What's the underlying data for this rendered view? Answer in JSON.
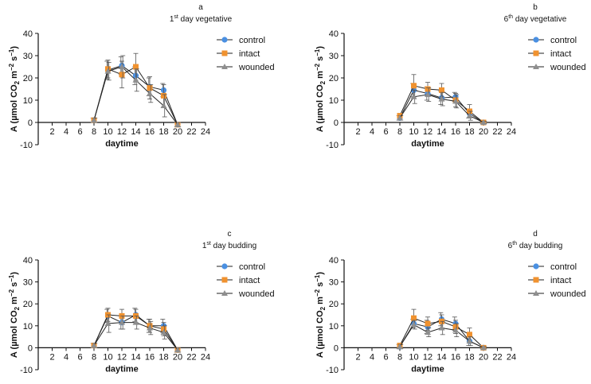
{
  "colors": {
    "control": "#4a90e2",
    "intact": "#f0922f",
    "wounded": "#8e8e8e",
    "axis": "#111111"
  },
  "chart_data": [
    {
      "type": "line",
      "panel_letter": "a",
      "title_ordinal": "1",
      "title_sup": "st",
      "title_rest": " day vegetative",
      "xlabel": "daytime",
      "ylabel": "A (µmol CO2 m−2 s−1)",
      "ylim": [
        -10,
        40
      ],
      "xlim": [
        0,
        24
      ],
      "xticks": [
        "2",
        "4",
        "6",
        "8",
        "10",
        "12",
        "14",
        "16",
        "18",
        "20",
        "22",
        "24"
      ],
      "yticks": [
        "-10",
        "0",
        "10",
        "20",
        "30",
        "40"
      ],
      "x": [
        8,
        10,
        12,
        14,
        16,
        18,
        20
      ],
      "series": [
        {
          "name": "control",
          "marker": "circle",
          "values": [
            1,
            23.5,
            25.5,
            21,
            16,
            14.5,
            -1
          ],
          "errors": [
            1,
            4,
            4,
            4,
            4,
            3,
            1
          ]
        },
        {
          "name": "intact",
          "marker": "square",
          "values": [
            1,
            24,
            21.5,
            25,
            15.5,
            12,
            -1
          ],
          "errors": [
            1,
            4,
            6,
            6,
            5,
            5,
            1
          ]
        },
        {
          "name": "wounded",
          "marker": "triangle",
          "values": [
            1,
            23,
            25,
            19,
            13,
            7.5,
            -1
          ],
          "errors": [
            1,
            4,
            5,
            5,
            4,
            5,
            1
          ]
        }
      ]
    },
    {
      "type": "line",
      "panel_letter": "b",
      "title_ordinal": "6",
      "title_sup": "th",
      "title_rest": " day vegetative",
      "xlabel": "daytime",
      "ylabel": "A (µmol CO2 m−2 s−1)",
      "ylim": [
        -10,
        40
      ],
      "xlim": [
        0,
        24
      ],
      "xticks": [
        "2",
        "4",
        "6",
        "8",
        "10",
        "12",
        "14",
        "16",
        "18",
        "20",
        "22",
        "24"
      ],
      "yticks": [
        "-10",
        "0",
        "10",
        "20",
        "30",
        "40"
      ],
      "x": [
        8,
        10,
        12,
        14,
        16,
        18,
        20
      ],
      "series": [
        {
          "name": "control",
          "marker": "circle",
          "values": [
            2,
            14.5,
            13,
            11,
            11.5,
            4,
            0
          ],
          "errors": [
            1,
            3,
            3,
            3,
            2,
            2,
            0.5
          ]
        },
        {
          "name": "intact",
          "marker": "square",
          "values": [
            3,
            16.5,
            15,
            14.5,
            10,
            5,
            0
          ],
          "errors": [
            1,
            5,
            3,
            3,
            3,
            3,
            0.5
          ]
        },
        {
          "name": "wounded",
          "marker": "triangle",
          "values": [
            2,
            11.5,
            12.5,
            10.5,
            9.5,
            3,
            0
          ],
          "errors": [
            1,
            3,
            3,
            3,
            3,
            2,
            0.5
          ]
        }
      ]
    },
    {
      "type": "line",
      "panel_letter": "c",
      "title_ordinal": "1",
      "title_sup": "st",
      "title_rest": " day budding",
      "xlabel": "daytime",
      "ylabel": "A (µmol CO2 m−2 s−1)",
      "ylim": [
        -10,
        40
      ],
      "xlim": [
        0,
        24
      ],
      "xticks": [
        "2",
        "4",
        "6",
        "8",
        "10",
        "12",
        "14",
        "16",
        "18",
        "20",
        "22",
        "24"
      ],
      "yticks": [
        "-10",
        "0",
        "10",
        "20",
        "30",
        "40"
      ],
      "x": [
        8,
        10,
        12,
        14,
        16,
        18,
        20
      ],
      "series": [
        {
          "name": "control",
          "marker": "circle",
          "values": [
            1,
            14.5,
            11.5,
            15,
            10,
            10,
            -1
          ],
          "errors": [
            1,
            3,
            3,
            3,
            3,
            3,
            1
          ]
        },
        {
          "name": "intact",
          "marker": "square",
          "values": [
            1,
            15,
            14.5,
            14.5,
            10,
            8.5,
            -1
          ],
          "errors": [
            1,
            3,
            3,
            3,
            3,
            3,
            1
          ]
        },
        {
          "name": "wounded",
          "marker": "triangle",
          "values": [
            1,
            11,
            11.5,
            11.5,
            9,
            7,
            -1
          ],
          "errors": [
            1,
            4,
            3,
            3,
            3,
            3,
            1
          ]
        }
      ]
    },
    {
      "type": "line",
      "panel_letter": "d",
      "title_ordinal": "6",
      "title_sup": "th",
      "title_rest": " day budding",
      "xlabel": "daytime",
      "ylabel": "A (µmol CO2 m−2 s−1)",
      "ylim": [
        -10,
        40
      ],
      "xlim": [
        0,
        24
      ],
      "xticks": [
        "2",
        "4",
        "6",
        "8",
        "10",
        "12",
        "14",
        "16",
        "18",
        "20",
        "22",
        "24"
      ],
      "yticks": [
        "-10",
        "0",
        "10",
        "20",
        "30",
        "40"
      ],
      "x": [
        8,
        10,
        12,
        14,
        16,
        18,
        20
      ],
      "series": [
        {
          "name": "control",
          "marker": "circle",
          "values": [
            0.5,
            11,
            9.5,
            13,
            11,
            3,
            0
          ],
          "errors": [
            1,
            2,
            3,
            3,
            3,
            2,
            0.5
          ]
        },
        {
          "name": "intact",
          "marker": "square",
          "values": [
            1,
            13.5,
            11,
            12,
            9.5,
            6,
            0
          ],
          "errors": [
            1,
            4,
            3,
            3,
            3,
            3,
            0.5
          ]
        },
        {
          "name": "wounded",
          "marker": "triangle",
          "values": [
            0.5,
            10.5,
            7,
            9,
            8,
            3,
            0
          ],
          "errors": [
            1,
            2,
            2,
            3,
            3,
            2,
            0.5
          ]
        }
      ]
    }
  ]
}
